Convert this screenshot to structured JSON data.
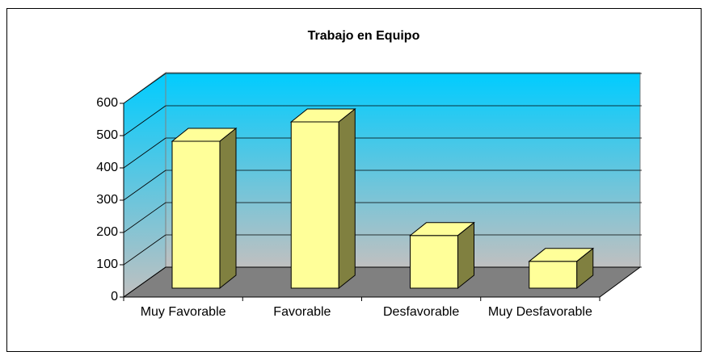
{
  "chart_data": {
    "type": "bar3d",
    "title": "Trabajo en Equipo",
    "categories": [
      "Muy Favorable",
      "Favorable",
      "Desfavorable",
      "Muy Desfavorable"
    ],
    "values": [
      455,
      515,
      163,
      83
    ],
    "color": "#ffff99",
    "side_color": "#808040",
    "ylim": [
      0,
      600
    ],
    "yticks": [
      0,
      100,
      200,
      300,
      400,
      500,
      600
    ],
    "grid": true
  }
}
